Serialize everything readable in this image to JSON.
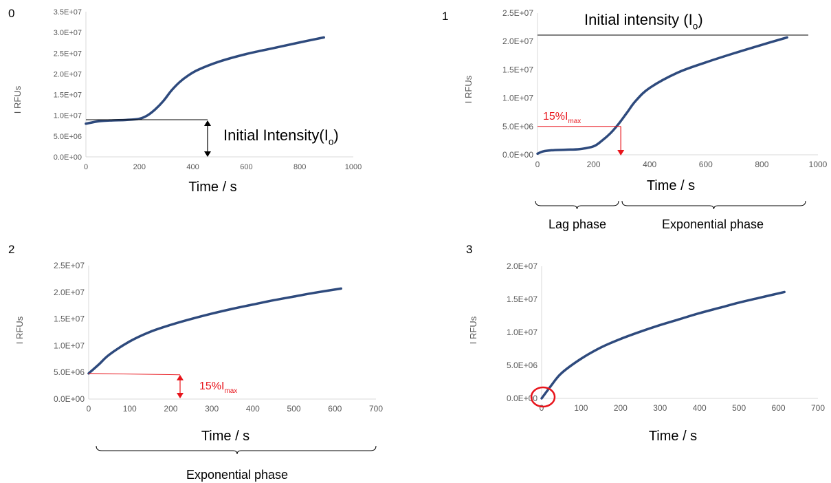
{
  "colors": {
    "curve": "#2E4A7D",
    "accent": "#E8141B",
    "axis": "#D9D9D9",
    "text": "#595959",
    "black": "#000000"
  },
  "panels": [
    {
      "number": "0"
    },
    {
      "number": "1"
    },
    {
      "number": "2"
    },
    {
      "number": "3"
    }
  ],
  "annotations": {
    "p0_intensity_label": "Initial Intensity(I",
    "p0_intensity_sub": "o",
    "p1_intensity_label": "Initial intensity (I",
    "p1_intensity_sub": "o",
    "p1_threshold_label": "15%I",
    "p1_threshold_sub": "max",
    "p1_lag_phase": "Lag phase",
    "p1_exp_phase": "Exponential phase",
    "p2_threshold_label": "15%I",
    "p2_threshold_sub": "max",
    "p2_exp_phase": "Exponential phase"
  },
  "chart_data": [
    {
      "type": "line",
      "xlabel": "Time / s",
      "ylabel": "I RFUs",
      "xlim": [
        0,
        1000
      ],
      "ylim": [
        0,
        35000000
      ],
      "xticks": [
        "0",
        "200",
        "400",
        "600",
        "800",
        "1000"
      ],
      "yticks": [
        "0.0E+00",
        "5.0E+06",
        "1.0E+07",
        "1.5E+07",
        "2.0E+07",
        "2.5E+07",
        "3.0E+07",
        "3.5E+07"
      ],
      "series": [
        {
          "x": [
            0,
            50,
            100,
            150,
            200,
            230,
            260,
            290,
            320,
            350,
            380,
            420,
            500,
            600,
            700,
            800,
            890
          ],
          "y": [
            8000000,
            8600000,
            8800000,
            8900000,
            9200000,
            10000000,
            11500000,
            13500000,
            16000000,
            18000000,
            19500000,
            21000000,
            23000000,
            24800000,
            26200000,
            27600000,
            28800000
          ]
        }
      ]
    },
    {
      "type": "line",
      "xlabel": "Time / s",
      "ylabel": "I RFUs",
      "xlim": [
        0,
        1000
      ],
      "ylim": [
        0,
        25000000
      ],
      "xticks": [
        "0",
        "200",
        "400",
        "600",
        "800",
        "1000"
      ],
      "yticks": [
        "0.0E+00",
        "5.0E+06",
        "1.0E+07",
        "1.5E+07",
        "2.0E+07",
        "2.5E+07"
      ],
      "series": [
        {
          "x": [
            0,
            20,
            50,
            100,
            150,
            200,
            230,
            260,
            290,
            320,
            350,
            400,
            500,
            600,
            700,
            800,
            890
          ],
          "y": [
            200000,
            600000,
            800000,
            900000,
            1000000,
            1500000,
            2500000,
            3800000,
            5500000,
            7500000,
            9500000,
            11800000,
            14500000,
            16300000,
            17900000,
            19400000,
            20700000
          ]
        }
      ]
    },
    {
      "type": "line",
      "xlabel": "Time / s",
      "ylabel": "I RFUs",
      "xlim": [
        0,
        700
      ],
      "ylim": [
        0,
        25000000
      ],
      "xticks": [
        "0",
        "100",
        "200",
        "300",
        "400",
        "500",
        "600",
        "700"
      ],
      "yticks": [
        "0.0E+00",
        "5.0E+06",
        "1.0E+07",
        "1.5E+07",
        "2.0E+07",
        "2.5E+07"
      ],
      "series": [
        {
          "x": [
            0,
            25,
            50,
            100,
            150,
            200,
            250,
            300,
            350,
            400,
            450,
            500,
            550,
            615
          ],
          "y": [
            4800000,
            6500000,
            8300000,
            10800000,
            12600000,
            13900000,
            15000000,
            16000000,
            16900000,
            17700000,
            18500000,
            19200000,
            19900000,
            20700000
          ]
        }
      ]
    },
    {
      "type": "line",
      "xlabel": "Time / s",
      "ylabel": "I RFUs",
      "xlim": [
        0,
        700
      ],
      "ylim": [
        0,
        20000000
      ],
      "xticks": [
        "0",
        "100",
        "200",
        "300",
        "400",
        "500",
        "600",
        "700"
      ],
      "yticks": [
        "0.0E+00",
        "5.0E+06",
        "1.0E+07",
        "1.5E+07",
        "2.0E+07"
      ],
      "series": [
        {
          "x": [
            0,
            25,
            50,
            100,
            150,
            200,
            250,
            300,
            350,
            400,
            450,
            500,
            550,
            615
          ],
          "y": [
            0,
            2000000,
            3800000,
            6000000,
            7700000,
            9000000,
            10100000,
            11100000,
            12000000,
            12900000,
            13700000,
            14500000,
            15200000,
            16100000
          ]
        }
      ]
    }
  ]
}
